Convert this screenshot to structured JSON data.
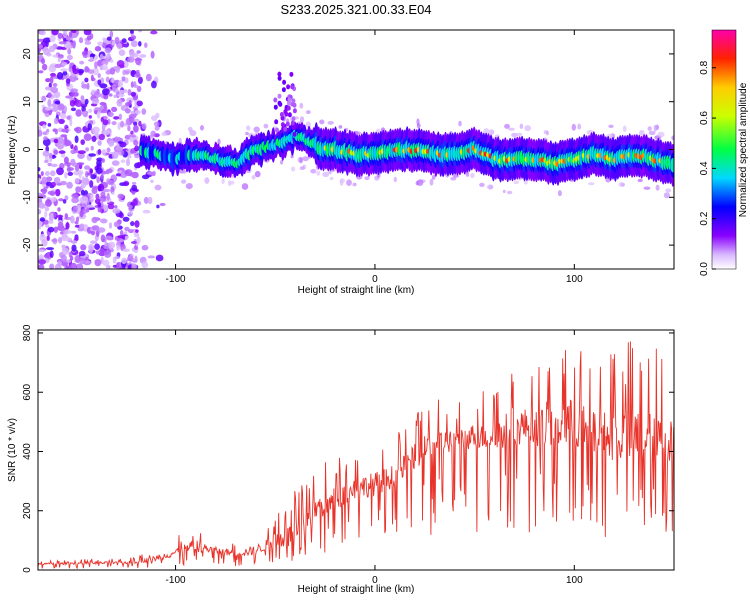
{
  "title": "S233.2025.321.00.33.E04",
  "chart_data": [
    {
      "type": "heatmap",
      "title": "S233.2025.321.00.33.E04",
      "xlabel": "Height of straight line (km)",
      "ylabel": "Frequency (Hz)",
      "xlim": [
        -169,
        150
      ],
      "ylim": [
        -25,
        25
      ],
      "x_ticks": [
        "-100",
        "0",
        "100"
      ],
      "x_tick_values": [
        -100,
        0,
        100
      ],
      "y_ticks": [
        "20",
        "10",
        "0",
        "-10",
        "-20"
      ],
      "y_tick_values": [
        20,
        10,
        0,
        -10,
        -20
      ],
      "ridge": {
        "x": [
          -117,
          -110,
          -100,
          -90,
          -80,
          -70,
          -60,
          -50,
          -45,
          -40,
          -35,
          -30,
          -25,
          -20,
          -10,
          0,
          10,
          20,
          30,
          40,
          50,
          60,
          70,
          80,
          90,
          100,
          110,
          120,
          130,
          140,
          150
        ],
        "freq": [
          0,
          -1,
          -2,
          -1,
          -2,
          -3,
          0,
          1,
          2,
          3,
          2,
          1,
          0,
          0,
          -1,
          -1,
          0,
          0,
          -1,
          -1,
          0,
          -2,
          -2,
          -2,
          -3,
          -2,
          -1,
          -2,
          -1,
          -2,
          -3
        ]
      },
      "colorbar": {
        "label": "Normalized spectral amplitude",
        "range": [
          0.0,
          0.95
        ],
        "ticks": [
          "0.0",
          "0.2",
          "0.4",
          "0.6",
          "0.8"
        ],
        "tick_values": [
          0.0,
          0.2,
          0.4,
          0.6,
          0.8
        ]
      }
    },
    {
      "type": "line",
      "xlabel": "Height of straight line (km)",
      "ylabel": "SNR (10 * v/v)",
      "xlim": [
        -169,
        150
      ],
      "ylim": [
        0,
        810
      ],
      "x_ticks": [
        "-100",
        "0",
        "100"
      ],
      "x_tick_values": [
        -100,
        0,
        100
      ],
      "y_ticks": [
        "0",
        "200",
        "400",
        "600",
        "800"
      ],
      "y_tick_values": [
        0,
        200,
        400,
        600,
        800
      ],
      "color": "#e8332a",
      "series": [
        {
          "name": "SNR",
          "x": [
            -169,
            -160,
            -150,
            -140,
            -130,
            -120,
            -110,
            -100,
            -90,
            -80,
            -70,
            -60,
            -50,
            -40,
            -35,
            -30,
            -20,
            -10,
            0,
            10,
            20,
            30,
            40,
            50,
            60,
            70,
            80,
            90,
            100,
            110,
            120,
            130,
            140,
            150
          ],
          "baseline": [
            18,
            18,
            19,
            20,
            20,
            22,
            30,
            45,
            60,
            55,
            45,
            50,
            75,
            70,
            130,
            160,
            200,
            240,
            250,
            280,
            340,
            380,
            400,
            410,
            400,
            420,
            420,
            400,
            410,
            380,
            360,
            360,
            350,
            360
          ],
          "peak": [
            30,
            32,
            35,
            38,
            38,
            45,
            70,
            110,
            155,
            105,
            95,
            120,
            190,
            280,
            300,
            350,
            380,
            400,
            430,
            450,
            530,
            600,
            560,
            600,
            620,
            720,
            690,
            810,
            780,
            720,
            760,
            780,
            760,
            680
          ]
        }
      ]
    }
  ]
}
